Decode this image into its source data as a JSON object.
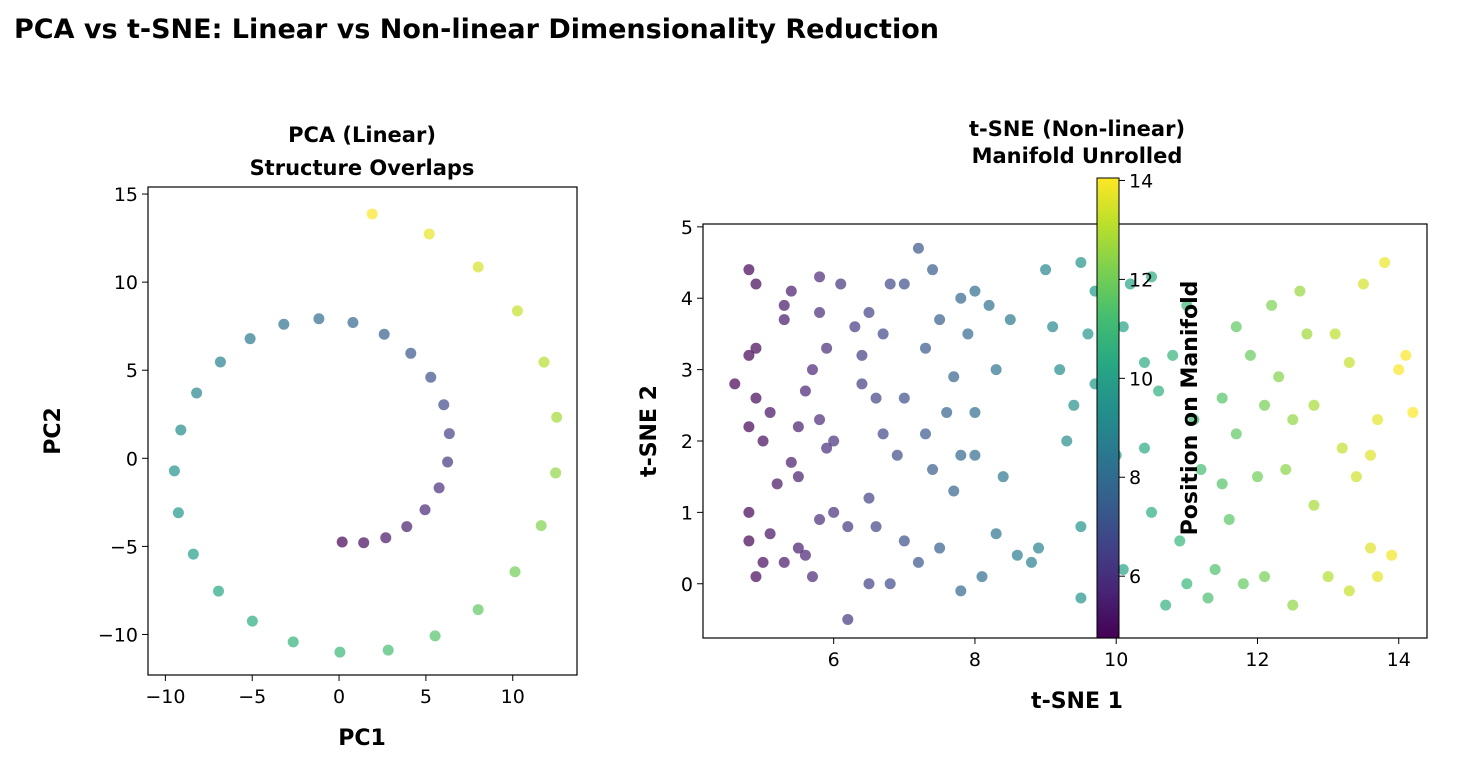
{
  "title": "PCA vs t-SNE: Linear vs Non-linear Dimensionality Reduction",
  "chart_data": [
    {
      "type": "scatter",
      "title_line1": "PCA (Linear)",
      "title_line2": "Structure Overlaps",
      "xlabel": "PC1",
      "ylabel": "PC2",
      "xlim": [
        -11,
        13.7
      ],
      "ylim": [
        -12.3,
        15.4
      ],
      "xticks": [
        -10,
        -5,
        0,
        5,
        10
      ],
      "xtick_labels": [
        "−10",
        "−5",
        "0",
        "5",
        "10"
      ],
      "yticks": [
        -10,
        -5,
        0,
        5,
        10,
        15
      ],
      "ytick_labels": [
        "−10",
        "−5",
        "0",
        "5",
        "10",
        "15"
      ],
      "colormap": "viridis",
      "grid": false,
      "points": [
        [
          0.18,
          -4.75,
          4.75
        ],
        [
          1.42,
          -4.79,
          5.0
        ],
        [
          2.69,
          -4.51,
          5.25
        ],
        [
          3.9,
          -3.88,
          5.5
        ],
        [
          4.95,
          -2.92,
          5.75
        ],
        [
          5.76,
          -1.68,
          6.0
        ],
        [
          6.25,
          -0.21,
          6.25
        ],
        [
          6.35,
          1.4,
          6.5
        ],
        [
          6.03,
          3.04,
          6.75
        ],
        [
          5.28,
          4.6,
          7.0
        ],
        [
          4.13,
          5.96,
          7.25
        ],
        [
          2.6,
          7.04,
          7.5
        ],
        [
          0.8,
          7.71,
          7.75
        ],
        [
          -1.16,
          7.92,
          8.0
        ],
        [
          -3.18,
          7.61,
          8.25
        ],
        [
          -5.12,
          6.79,
          8.5
        ],
        [
          -6.83,
          5.47,
          8.75
        ],
        [
          -8.2,
          3.71,
          9.0
        ],
        [
          -9.11,
          1.61,
          9.25
        ],
        [
          -9.48,
          -0.71,
          9.5
        ],
        [
          -9.25,
          -3.09,
          9.75
        ],
        [
          -8.39,
          -5.44,
          10.0
        ],
        [
          -6.94,
          -7.54,
          10.25
        ],
        [
          -4.99,
          -9.24,
          10.5
        ],
        [
          -2.64,
          -10.42,
          10.75
        ],
        [
          0.05,
          -11.0,
          11.0
        ],
        [
          2.83,
          -10.89,
          11.25
        ],
        [
          5.53,
          -10.08,
          11.5
        ],
        [
          8.01,
          -8.59,
          11.75
        ],
        [
          10.13,
          -6.44,
          12.0
        ],
        [
          11.64,
          -3.82,
          12.25
        ],
        [
          12.47,
          -0.83,
          12.5
        ],
        [
          12.53,
          2.33,
          12.75
        ],
        [
          11.8,
          5.46,
          13.0
        ],
        [
          10.27,
          8.37,
          13.25
        ],
        [
          8.01,
          10.86,
          13.5
        ],
        [
          5.19,
          12.73,
          13.75
        ],
        [
          1.91,
          13.87,
          14.0
        ]
      ]
    },
    {
      "type": "scatter",
      "title_line1": "t-SNE (Non-linear)",
      "title_line2": "Manifold Unrolled",
      "xlabel": "t-SNE 1",
      "ylabel": "t-SNE 2",
      "xlim": [
        4.15,
        14.4
      ],
      "ylim": [
        -0.76,
        5.04
      ],
      "xticks": [
        6,
        8,
        10,
        12,
        14
      ],
      "xtick_labels": [
        "6",
        "8",
        "10",
        "12",
        "14"
      ],
      "yticks": [
        0,
        1,
        2,
        3,
        4,
        5
      ],
      "ytick_labels": [
        "0",
        "1",
        "2",
        "3",
        "4",
        "5"
      ],
      "colormap": "viridis",
      "grid": false,
      "colorbar": {
        "label": "Position on Manifold",
        "range": [
          4.75,
          14.05
        ],
        "ticks": [
          6,
          8,
          10,
          12,
          14
        ],
        "tick_labels": [
          "6",
          "8",
          "10",
          "12",
          "14"
        ]
      },
      "points": [
        [
          4.8,
          4.4,
          4.8
        ],
        [
          4.9,
          4.2,
          4.9
        ],
        [
          4.8,
          3.2,
          4.8
        ],
        [
          4.9,
          3.3,
          4.9
        ],
        [
          4.6,
          2.8,
          4.75
        ],
        [
          4.9,
          2.6,
          4.9
        ],
        [
          4.8,
          2.2,
          4.8
        ],
        [
          5.0,
          2.0,
          5.0
        ],
        [
          5.1,
          2.4,
          5.1
        ],
        [
          4.8,
          1.0,
          4.8
        ],
        [
          4.8,
          0.6,
          4.8
        ],
        [
          4.9,
          0.1,
          4.9
        ],
        [
          5.0,
          0.3,
          5.0
        ],
        [
          5.1,
          0.7,
          5.1
        ],
        [
          5.2,
          1.4,
          5.2
        ],
        [
          5.3,
          0.3,
          5.3
        ],
        [
          5.4,
          1.7,
          5.4
        ],
        [
          5.4,
          4.1,
          5.4
        ],
        [
          5.3,
          3.9,
          5.3
        ],
        [
          5.3,
          3.7,
          5.3
        ],
        [
          5.5,
          2.2,
          5.5
        ],
        [
          5.5,
          1.5,
          5.5
        ],
        [
          5.5,
          0.5,
          5.5
        ],
        [
          5.6,
          0.4,
          5.6
        ],
        [
          5.6,
          2.7,
          5.6
        ],
        [
          5.7,
          0.1,
          5.7
        ],
        [
          5.7,
          3.0,
          5.7
        ],
        [
          5.8,
          3.8,
          5.8
        ],
        [
          5.8,
          2.3,
          5.8
        ],
        [
          5.8,
          0.9,
          5.8
        ],
        [
          5.8,
          4.3,
          5.8
        ],
        [
          5.9,
          1.9,
          5.9
        ],
        [
          5.9,
          3.3,
          5.9
        ],
        [
          6.0,
          2.0,
          6.0
        ],
        [
          6.0,
          1.0,
          6.0
        ],
        [
          6.1,
          4.2,
          6.1
        ],
        [
          6.2,
          0.8,
          6.2
        ],
        [
          6.2,
          -0.5,
          6.2
        ],
        [
          6.3,
          3.6,
          6.3
        ],
        [
          6.4,
          3.2,
          6.4
        ],
        [
          6.4,
          2.8,
          6.4
        ],
        [
          6.5,
          3.8,
          6.5
        ],
        [
          6.5,
          1.2,
          6.5
        ],
        [
          6.5,
          0.0,
          6.5
        ],
        [
          6.6,
          2.6,
          6.6
        ],
        [
          6.6,
          0.8,
          6.6
        ],
        [
          6.7,
          3.5,
          6.7
        ],
        [
          6.7,
          2.1,
          6.7
        ],
        [
          6.8,
          4.2,
          6.8
        ],
        [
          6.8,
          0.0,
          6.8
        ],
        [
          6.9,
          1.8,
          6.9
        ],
        [
          7.0,
          4.2,
          7.0
        ],
        [
          7.0,
          2.6,
          7.0
        ],
        [
          7.0,
          0.6,
          7.0
        ],
        [
          7.2,
          4.7,
          7.2
        ],
        [
          7.2,
          0.3,
          7.2
        ],
        [
          7.3,
          3.3,
          7.3
        ],
        [
          7.3,
          2.1,
          7.3
        ],
        [
          7.4,
          1.6,
          7.4
        ],
        [
          7.4,
          4.4,
          7.4
        ],
        [
          7.5,
          3.7,
          7.5
        ],
        [
          7.5,
          0.5,
          7.5
        ],
        [
          7.6,
          2.4,
          7.6
        ],
        [
          7.7,
          2.9,
          7.7
        ],
        [
          7.7,
          1.3,
          7.7
        ],
        [
          7.8,
          4.0,
          7.8
        ],
        [
          7.8,
          1.8,
          7.8
        ],
        [
          7.8,
          -0.1,
          7.8
        ],
        [
          7.9,
          3.5,
          7.9
        ],
        [
          8.0,
          2.4,
          8.0
        ],
        [
          8.0,
          1.8,
          8.0
        ],
        [
          8.0,
          4.1,
          8.0
        ],
        [
          8.1,
          0.1,
          8.1
        ],
        [
          8.2,
          3.9,
          8.2
        ],
        [
          8.3,
          3.0,
          8.3
        ],
        [
          8.3,
          0.7,
          8.3
        ],
        [
          8.4,
          1.5,
          8.4
        ],
        [
          8.5,
          3.7,
          8.5
        ],
        [
          8.6,
          0.4,
          8.6
        ],
        [
          8.8,
          0.3,
          8.8
        ],
        [
          8.9,
          0.5,
          8.9
        ],
        [
          9.0,
          4.4,
          9.0
        ],
        [
          9.1,
          3.6,
          9.1
        ],
        [
          9.2,
          3.0,
          9.2
        ],
        [
          9.3,
          2.0,
          9.3
        ],
        [
          9.4,
          2.5,
          9.4
        ],
        [
          9.5,
          4.5,
          9.5
        ],
        [
          9.5,
          -0.2,
          9.5
        ],
        [
          9.5,
          0.8,
          9.5
        ],
        [
          9.6,
          3.5,
          9.6
        ],
        [
          9.7,
          4.1,
          9.7
        ],
        [
          9.7,
          2.8,
          9.7
        ],
        [
          9.8,
          1.6,
          9.8
        ],
        [
          9.9,
          3.3,
          9.9
        ],
        [
          10.0,
          1.8,
          10.0
        ],
        [
          10.1,
          3.6,
          10.1
        ],
        [
          10.1,
          0.2,
          10.1
        ],
        [
          10.2,
          4.2,
          10.2
        ],
        [
          10.4,
          3.1,
          10.4
        ],
        [
          10.4,
          1.9,
          10.4
        ],
        [
          10.5,
          4.3,
          10.5
        ],
        [
          10.5,
          1.0,
          10.5
        ],
        [
          10.6,
          2.7,
          10.6
        ],
        [
          10.7,
          -0.3,
          10.7
        ],
        [
          10.8,
          3.2,
          10.8
        ],
        [
          10.9,
          0.6,
          10.9
        ],
        [
          11.0,
          3.9,
          11.0
        ],
        [
          11.0,
          0.0,
          11.0
        ],
        [
          11.1,
          2.3,
          11.1
        ],
        [
          11.2,
          1.6,
          11.2
        ],
        [
          11.3,
          -0.2,
          11.3
        ],
        [
          11.4,
          0.2,
          11.4
        ],
        [
          11.5,
          2.6,
          11.5
        ],
        [
          11.5,
          1.4,
          11.5
        ],
        [
          11.6,
          0.9,
          11.6
        ],
        [
          11.7,
          3.6,
          11.7
        ],
        [
          11.7,
          2.1,
          11.7
        ],
        [
          11.8,
          0.0,
          11.8
        ],
        [
          11.9,
          3.2,
          11.9
        ],
        [
          12.0,
          1.5,
          12.0
        ],
        [
          12.1,
          2.5,
          12.1
        ],
        [
          12.1,
          0.1,
          12.1
        ],
        [
          12.2,
          3.9,
          12.2
        ],
        [
          12.3,
          2.9,
          12.3
        ],
        [
          12.4,
          1.6,
          12.4
        ],
        [
          12.5,
          2.3,
          12.5
        ],
        [
          12.5,
          -0.3,
          12.5
        ],
        [
          12.6,
          4.1,
          12.6
        ],
        [
          12.7,
          3.5,
          12.7
        ],
        [
          12.8,
          1.1,
          12.8
        ],
        [
          12.8,
          2.5,
          12.8
        ],
        [
          13.0,
          0.1,
          13.0
        ],
        [
          13.1,
          3.5,
          13.1
        ],
        [
          13.2,
          1.9,
          13.2
        ],
        [
          13.3,
          3.1,
          13.3
        ],
        [
          13.3,
          -0.1,
          13.3
        ],
        [
          13.4,
          1.5,
          13.4
        ],
        [
          13.5,
          4.2,
          13.5
        ],
        [
          13.6,
          0.5,
          13.6
        ],
        [
          13.6,
          1.8,
          13.6
        ],
        [
          13.7,
          2.3,
          13.7
        ],
        [
          13.7,
          0.1,
          13.7
        ],
        [
          13.8,
          4.5,
          13.8
        ],
        [
          13.9,
          0.4,
          13.9
        ],
        [
          14.0,
          3.0,
          14.0
        ],
        [
          14.1,
          3.2,
          14.0
        ],
        [
          14.2,
          2.4,
          14.05
        ]
      ]
    }
  ]
}
